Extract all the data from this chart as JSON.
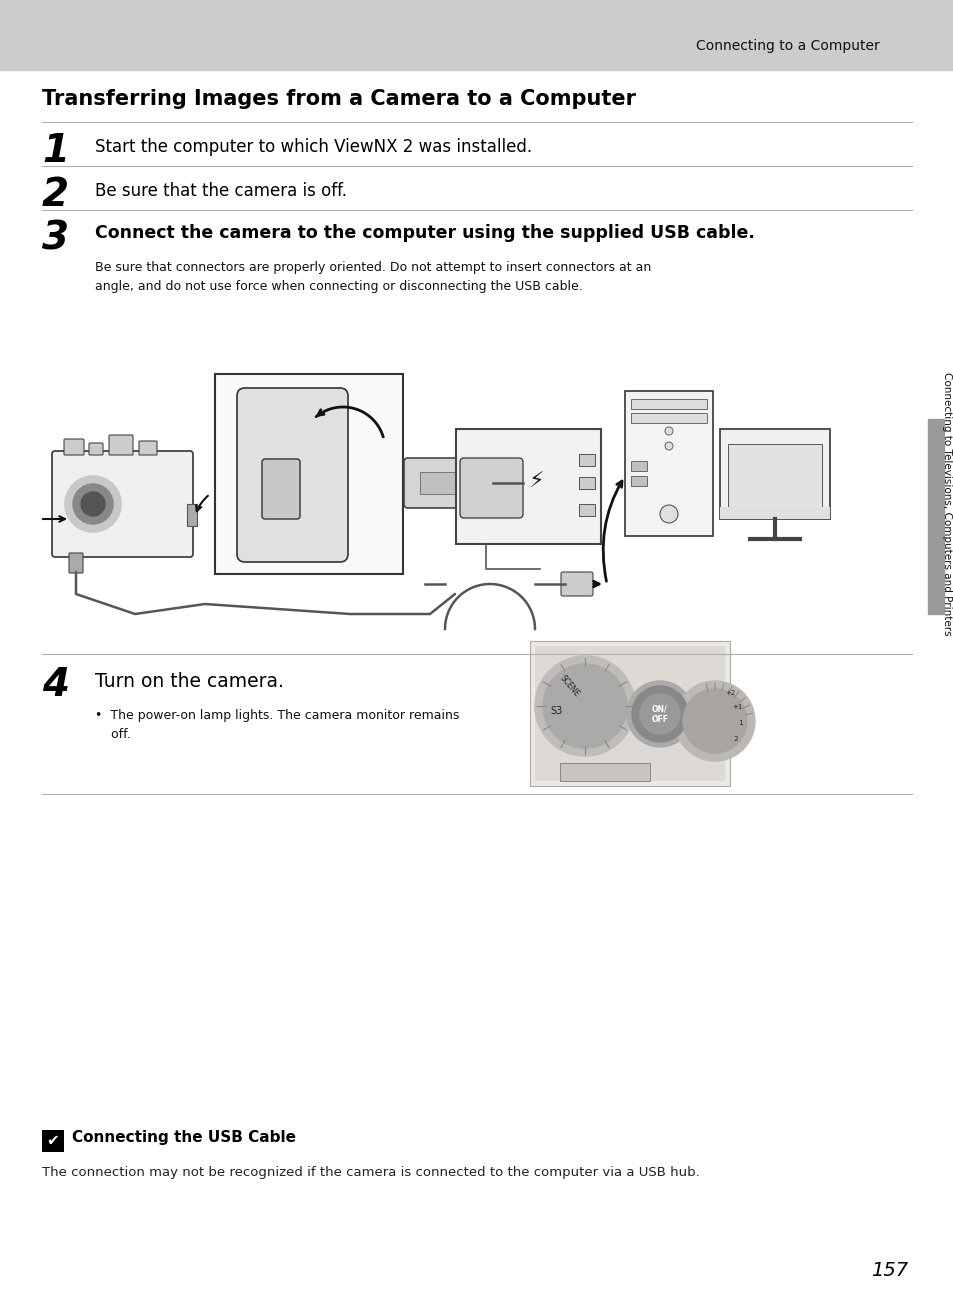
{
  "page_bg": "#ffffff",
  "header_bg": "#cccccc",
  "header_text": "Connecting to a Computer",
  "title": "Transferring Images from a Camera to a Computer",
  "step1_num": "1",
  "step1_text": "Start the computer to which ViewNX 2 was installed.",
  "step2_num": "2",
  "step2_text": "Be sure that the camera is off.",
  "step3_num": "3",
  "step3_text": "Connect the camera to the computer using the supplied USB cable.",
  "step3_sub": "Be sure that connectors are properly oriented. Do not attempt to insert connectors at an\nangle, and do not use force when connecting or disconnecting the USB cable.",
  "step4_num": "4",
  "step4_text": "Turn on the camera.",
  "step4_bullet": "•  The power-on lamp lights. The camera monitor remains\n    off.",
  "sidebar_text": "Connecting to Televisions, Computers and Printers",
  "note_title": "Connecting the USB Cable",
  "note_text": "The connection may not be recognized if the camera is connected to the computer via a USB hub.",
  "page_number": "157",
  "line_color": "#b0b0b0",
  "body_color": "#000000",
  "sub_color": "#111111",
  "sidebar_gray": "#999999"
}
